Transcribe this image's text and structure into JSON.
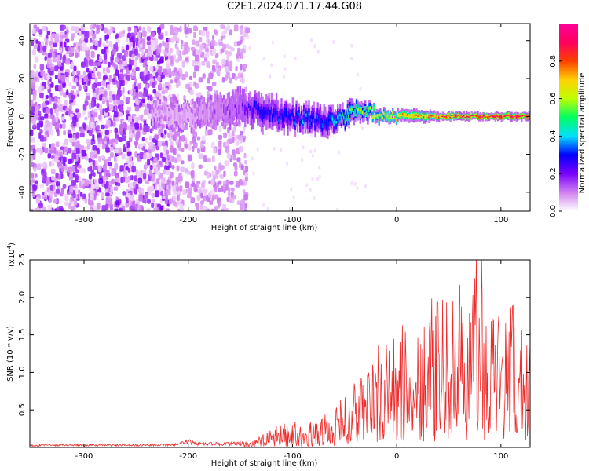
{
  "title": "C2E1.2024.071.17.44.G08",
  "chart_data": [
    {
      "type": "heatmap",
      "xlabel": "Height of straight line (km)",
      "ylabel": "Frequency (Hz)",
      "xlim": [
        -352,
        128
      ],
      "ylim": [
        -50,
        49
      ],
      "xticks": [
        -300,
        -200,
        -100,
        0,
        100
      ],
      "yticks": [
        -40,
        -20,
        0,
        20,
        40
      ],
      "colorbar": {
        "label": "Normalized spectral amplitude",
        "range": [
          0,
          1
        ],
        "ticks": [
          0.0,
          0.2,
          0.4,
          0.6,
          0.8
        ],
        "colors": [
          "#ffffff",
          "#d080f0",
          "#7b00ff",
          "#0000ff",
          "#00e0ff",
          "#00ff60",
          "#c0ff00",
          "#ffd000",
          "#ff4000",
          "#ff0060",
          "#ff0099"
        ]
      },
      "ridge": {
        "x": [
          -230,
          -200,
          -150,
          -130,
          -110,
          -90,
          -70,
          -60,
          -50,
          -40,
          -30,
          -20,
          -10,
          0,
          20,
          40,
          60,
          80,
          100,
          128
        ],
        "center_hz": [
          2,
          0,
          5,
          3,
          0,
          -1,
          -3,
          -2,
          0,
          3,
          3,
          1,
          1,
          1,
          0,
          0,
          0,
          0,
          0,
          0
        ],
        "halfwidth_hz": [
          6,
          6,
          7,
          8,
          7,
          6,
          7,
          6,
          5,
          5,
          4,
          3,
          3,
          3,
          3,
          2,
          2,
          2,
          2,
          2
        ],
        "peak_amplitude": [
          0.1,
          0.1,
          0.2,
          0.3,
          0.3,
          0.35,
          0.3,
          0.4,
          0.45,
          0.55,
          0.55,
          0.6,
          0.65,
          0.7,
          0.75,
          0.8,
          0.85,
          0.9,
          0.9,
          0.9
        ]
      },
      "noise_cutoff_km": -145
    },
    {
      "type": "line",
      "xlabel": "Height of straight line (km)",
      "ylabel": "SNR (10 * v/v)",
      "multiplier_base": "(x10",
      "multiplier_exp": "4",
      "multiplier_close": ")",
      "xlim": [
        -352,
        128
      ],
      "ylim": [
        0,
        2.5
      ],
      "xticks": [
        -300,
        -200,
        -100,
        0,
        100
      ],
      "yticks": [
        0.5,
        1.0,
        1.5,
        2.0,
        2.5
      ],
      "ytick_labels": [
        "0.5",
        "1.0",
        "1.5",
        "2.0",
        "2.5"
      ],
      "series": [
        {
          "color": "#ee2b2b",
          "x": [
            -352,
            -300,
            -250,
            -210,
            -200,
            -190,
            -160,
            -140,
            -130,
            -120,
            -110,
            -100,
            -90,
            -80,
            -70,
            -60,
            -50,
            -40,
            -30,
            -20,
            -10,
            0,
            10,
            20,
            30,
            40,
            50,
            60,
            70,
            80,
            90,
            100,
            110,
            120,
            128
          ],
          "y": [
            0.03,
            0.03,
            0.03,
            0.04,
            0.08,
            0.05,
            0.05,
            0.07,
            0.12,
            0.2,
            0.25,
            0.3,
            0.22,
            0.28,
            0.35,
            0.4,
            0.55,
            0.7,
            0.9,
            1.05,
            1.1,
            1.2,
            1.3,
            1.4,
            1.6,
            1.5,
            1.55,
            1.7,
            1.5,
            2.0,
            1.6,
            1.4,
            1.5,
            1.3,
            1.4
          ]
        }
      ]
    }
  ]
}
